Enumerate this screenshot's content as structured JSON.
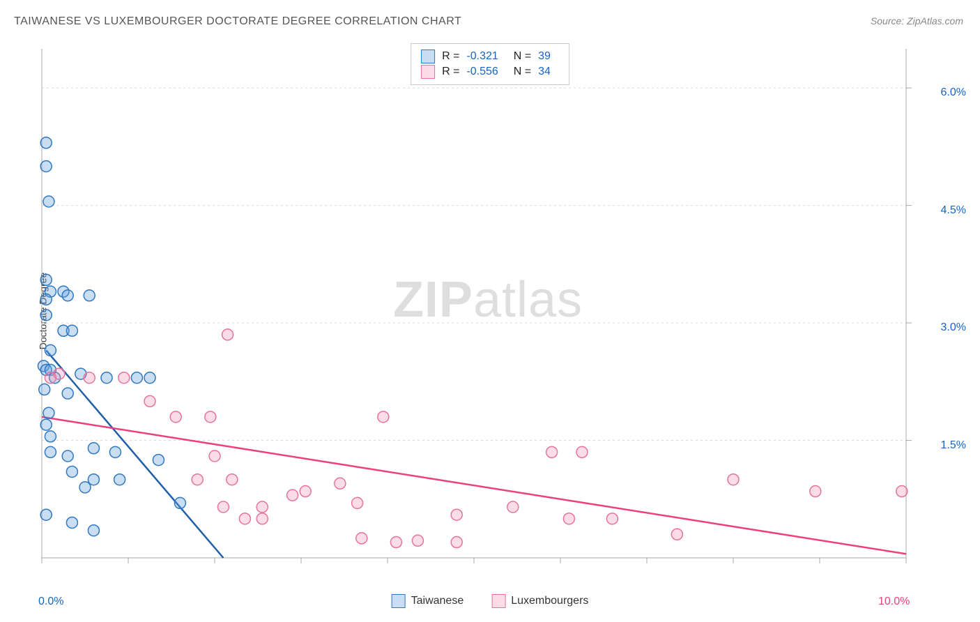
{
  "title": "TAIWANESE VS LUXEMBOURGER DOCTORATE DEGREE CORRELATION CHART",
  "source": "Source: ZipAtlas.com",
  "y_axis_label": "Doctorate Degree",
  "watermark": {
    "zip": "ZIP",
    "atlas": "atlas"
  },
  "chart": {
    "type": "scatter",
    "xlim": [
      0,
      10
    ],
    "ylim": [
      0,
      6.5
    ],
    "x_ticks_label": {
      "min": "0.0%",
      "max": "10.0%"
    },
    "x_tick_positions": [
      0,
      1,
      2,
      3,
      4,
      5,
      6,
      7,
      8,
      9,
      10
    ],
    "y_ticks": [
      {
        "v": 1.5,
        "label": "1.5%"
      },
      {
        "v": 3.0,
        "label": "3.0%"
      },
      {
        "v": 4.5,
        "label": "4.5%"
      },
      {
        "v": 6.0,
        "label": "6.0%"
      }
    ],
    "grid_color": "#d9d9d9",
    "axis_color": "#a8a8a8",
    "tick_label_color": "#1565c0",
    "x_tick_min_color": "#1565c0",
    "x_tick_max_color": "#ec407a",
    "background_color": "#ffffff",
    "marker_radius": 8,
    "marker_stroke_width": 1.5,
    "trend_line_width": 2.5,
    "series": [
      {
        "name": "Taiwanese",
        "fill": "rgba(100,160,220,0.35)",
        "stroke": "#2f77c0",
        "trend_color": "#1e5fa8",
        "trend": {
          "x1": 0.05,
          "y1": 2.65,
          "x2": 2.1,
          "y2": 0.0
        },
        "points": [
          [
            0.05,
            5.3
          ],
          [
            0.05,
            5.0
          ],
          [
            0.08,
            4.55
          ],
          [
            0.05,
            3.55
          ],
          [
            0.1,
            3.4
          ],
          [
            0.25,
            3.4
          ],
          [
            0.55,
            3.35
          ],
          [
            0.3,
            3.35
          ],
          [
            0.05,
            3.3
          ],
          [
            0.05,
            3.1
          ],
          [
            0.25,
            2.9
          ],
          [
            0.35,
            2.9
          ],
          [
            0.1,
            2.65
          ],
          [
            0.02,
            2.45
          ],
          [
            0.05,
            2.4
          ],
          [
            0.1,
            2.4
          ],
          [
            0.45,
            2.35
          ],
          [
            0.15,
            2.3
          ],
          [
            0.03,
            2.15
          ],
          [
            0.3,
            2.1
          ],
          [
            0.75,
            2.3
          ],
          [
            1.1,
            2.3
          ],
          [
            1.25,
            2.3
          ],
          [
            0.08,
            1.85
          ],
          [
            0.05,
            1.7
          ],
          [
            0.1,
            1.55
          ],
          [
            0.1,
            1.35
          ],
          [
            0.3,
            1.3
          ],
          [
            0.6,
            1.4
          ],
          [
            0.85,
            1.35
          ],
          [
            0.35,
            1.1
          ],
          [
            0.6,
            1.0
          ],
          [
            0.9,
            1.0
          ],
          [
            0.5,
            0.9
          ],
          [
            0.05,
            0.55
          ],
          [
            0.35,
            0.45
          ],
          [
            0.6,
            0.35
          ],
          [
            1.6,
            0.7
          ],
          [
            1.35,
            1.25
          ]
        ]
      },
      {
        "name": "Luxembourgers",
        "fill": "rgba(244,143,177,0.30)",
        "stroke": "#e57399",
        "trend_color": "#ec407a",
        "trend": {
          "x1": 0.0,
          "y1": 1.8,
          "x2": 10.0,
          "y2": 0.05
        },
        "points": [
          [
            2.15,
            2.85
          ],
          [
            0.2,
            2.35
          ],
          [
            0.1,
            2.3
          ],
          [
            0.55,
            2.3
          ],
          [
            0.95,
            2.3
          ],
          [
            1.25,
            2.0
          ],
          [
            1.55,
            1.8
          ],
          [
            1.95,
            1.8
          ],
          [
            3.95,
            1.8
          ],
          [
            2.0,
            1.3
          ],
          [
            1.8,
            1.0
          ],
          [
            2.2,
            1.0
          ],
          [
            2.1,
            0.65
          ],
          [
            2.55,
            0.65
          ],
          [
            2.35,
            0.5
          ],
          [
            2.55,
            0.5
          ],
          [
            2.9,
            0.8
          ],
          [
            3.05,
            0.85
          ],
          [
            3.45,
            0.95
          ],
          [
            3.65,
            0.7
          ],
          [
            4.1,
            0.2
          ],
          [
            4.35,
            0.22
          ],
          [
            3.7,
            0.25
          ],
          [
            4.8,
            0.2
          ],
          [
            4.8,
            0.55
          ],
          [
            5.45,
            0.65
          ],
          [
            5.9,
            1.35
          ],
          [
            6.25,
            1.35
          ],
          [
            6.6,
            0.5
          ],
          [
            7.35,
            0.3
          ],
          [
            6.1,
            0.5
          ],
          [
            8.0,
            1.0
          ],
          [
            8.95,
            0.85
          ],
          [
            9.95,
            0.85
          ]
        ]
      }
    ]
  },
  "stats_legend": {
    "rows": [
      {
        "swatch_fill": "rgba(100,160,220,0.35)",
        "swatch_stroke": "#2f77c0",
        "r_label": "R =",
        "r_val": "-0.321",
        "n_label": "N =",
        "n_val": "39"
      },
      {
        "swatch_fill": "rgba(244,143,177,0.30)",
        "swatch_stroke": "#e57399",
        "r_label": "R =",
        "r_val": "-0.556",
        "n_label": "N =",
        "n_val": "34"
      }
    ]
  },
  "bottom_legend": {
    "items": [
      {
        "swatch_fill": "rgba(100,160,220,0.35)",
        "swatch_stroke": "#2f77c0",
        "label": "Taiwanese"
      },
      {
        "swatch_fill": "rgba(244,143,177,0.30)",
        "swatch_stroke": "#e57399",
        "label": "Luxembourgers"
      }
    ]
  }
}
